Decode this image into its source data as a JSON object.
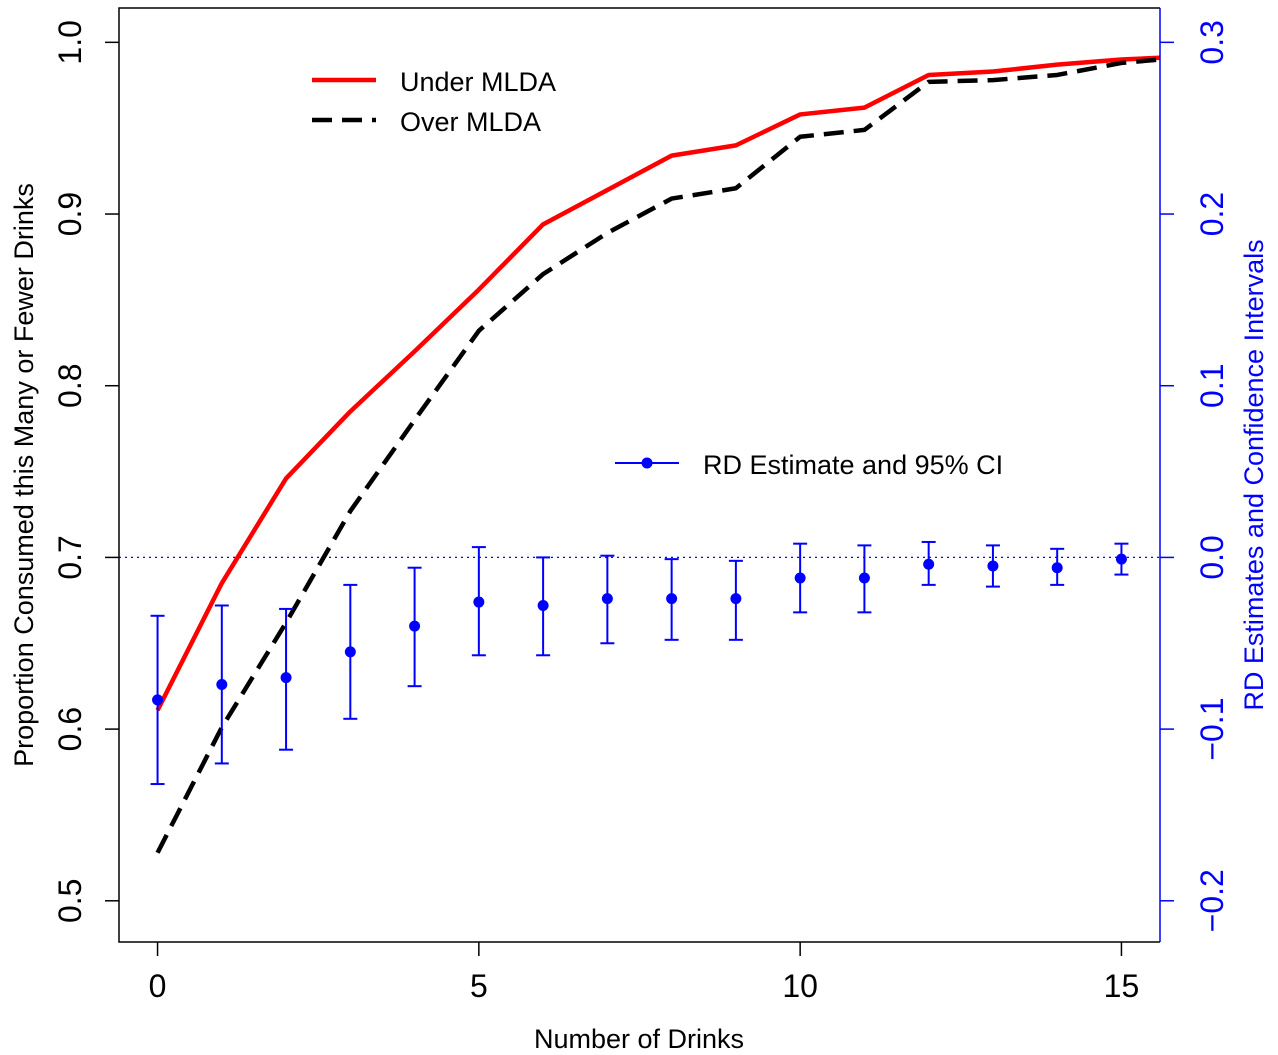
{
  "chart_data": {
    "type": "line",
    "xlabel": "Number of Drinks",
    "ylabel": "Proportion Consumed this Many or Fewer Drinks",
    "ylabel_right": "RD Estimates and Confidence Intervals",
    "xlim": [
      -0.6,
      15.6
    ],
    "ylim": [
      0.476,
      1.02
    ],
    "ylim_right": [
      -0.2,
      0.3
    ],
    "x_ticks": [
      0,
      5,
      10,
      15
    ],
    "y_ticks": [
      0.5,
      0.6,
      0.7,
      0.8,
      0.9,
      1.0
    ],
    "y_tick_labels": [
      "0.5",
      "0.6",
      "0.7",
      "0.8",
      "0.9",
      "1.0"
    ],
    "y_right_ticks": [
      -0.2,
      -0.1,
      0.0,
      0.1,
      0.2,
      0.3
    ],
    "y_right_tick_labels": [
      "−0.2",
      "−0.1",
      "0.0",
      "0.1",
      "0.2",
      "0.3"
    ],
    "reference_line_right": 0.0,
    "x": [
      0,
      1,
      2,
      3,
      4,
      5,
      6,
      7,
      8,
      9,
      10,
      11,
      12,
      13,
      14,
      15,
      15.6
    ],
    "series": [
      {
        "name": "Under MLDA",
        "color": "#ff0000",
        "style": "solid",
        "values": [
          0.611,
          0.685,
          0.746,
          0.785,
          0.82,
          0.856,
          0.894,
          0.914,
          0.934,
          0.94,
          0.958,
          0.962,
          0.981,
          0.983,
          0.987,
          0.99,
          0.991
        ]
      },
      {
        "name": "Over MLDA",
        "color": "#000000",
        "style": "dashed",
        "values": [
          0.528,
          0.601,
          0.662,
          0.727,
          0.78,
          0.832,
          0.865,
          0.889,
          0.909,
          0.915,
          0.945,
          0.949,
          0.977,
          0.978,
          0.981,
          0.988,
          0.99
        ]
      }
    ],
    "rd_series": {
      "name": "RD Estimate and 95% CI",
      "color": "#0000ff",
      "x": [
        0,
        1,
        2,
        3,
        4,
        5,
        6,
        7,
        8,
        9,
        10,
        11,
        12,
        13,
        14,
        15
      ],
      "estimate": [
        -0.083,
        -0.074,
        -0.07,
        -0.055,
        -0.04,
        -0.026,
        -0.028,
        -0.024,
        -0.024,
        -0.024,
        -0.012,
        -0.012,
        -0.004,
        -0.005,
        -0.006,
        -0.001
      ],
      "ci_low": [
        -0.132,
        -0.12,
        -0.112,
        -0.094,
        -0.075,
        -0.057,
        -0.057,
        -0.05,
        -0.048,
        -0.048,
        -0.032,
        -0.032,
        -0.016,
        -0.017,
        -0.016,
        -0.01
      ],
      "ci_high": [
        -0.034,
        -0.028,
        -0.03,
        -0.016,
        -0.006,
        0.006,
        0.0,
        0.001,
        -0.001,
        -0.002,
        0.008,
        0.007,
        0.009,
        0.007,
        0.005,
        0.008
      ]
    },
    "legend_top": [
      "Under MLDA",
      "Over MLDA"
    ],
    "legend_mid": "RD Estimate and 95% CI"
  }
}
